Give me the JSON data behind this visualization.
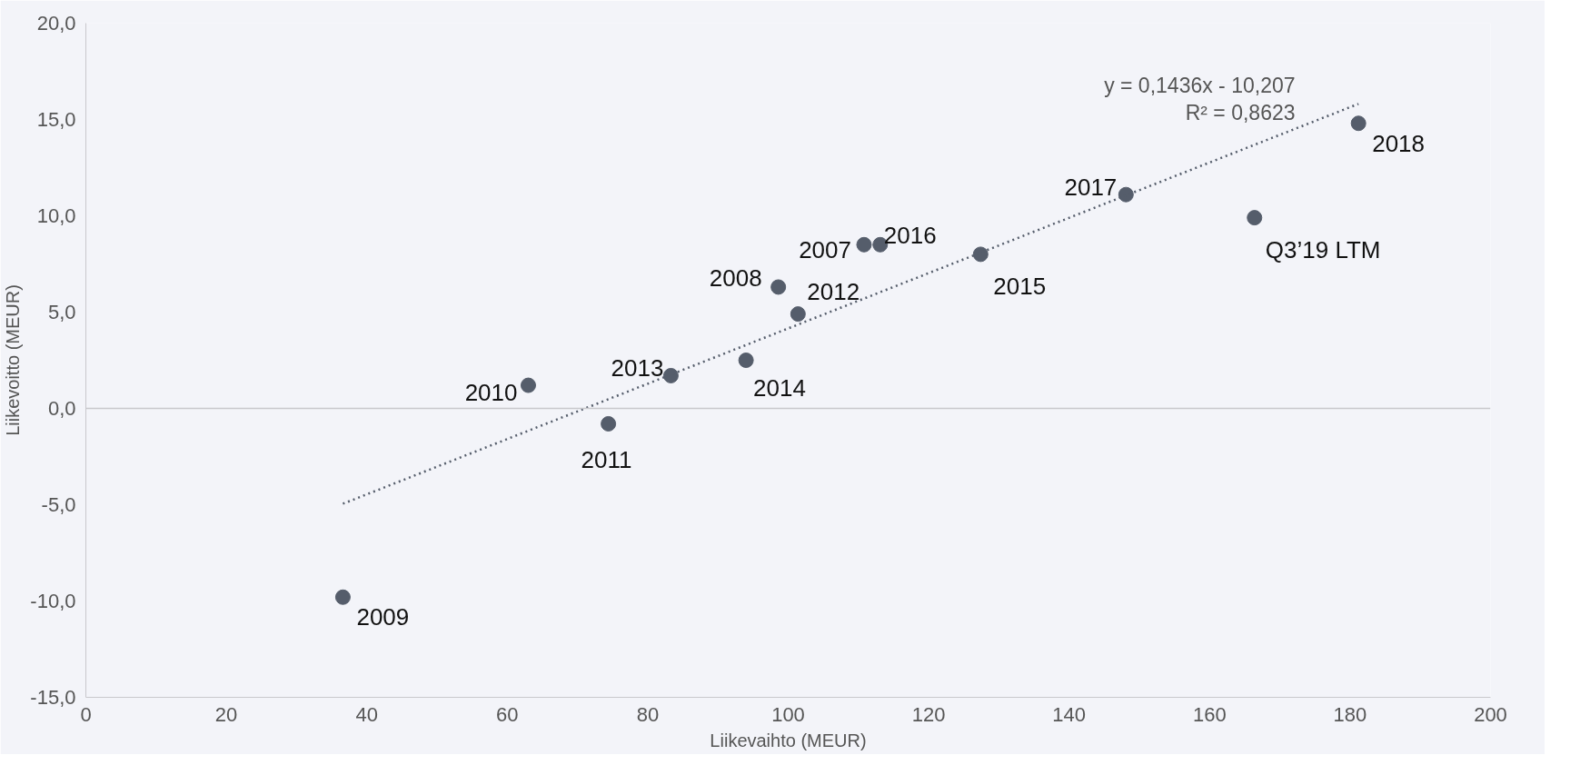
{
  "chart_data": {
    "type": "scatter",
    "xlabel": "Liikevaihto (MEUR)",
    "ylabel": "Liikevoitto (MEUR)",
    "xlim": [
      0,
      200
    ],
    "ylim": [
      -15,
      20
    ],
    "xticks": [
      0,
      20,
      40,
      60,
      80,
      100,
      120,
      140,
      160,
      180,
      200
    ],
    "yticks": [
      {
        "value": -15,
        "label": "-15,0"
      },
      {
        "value": -10,
        "label": "-10,0"
      },
      {
        "value": -5,
        "label": "-5,0"
      },
      {
        "value": 0,
        "label": "0,0"
      },
      {
        "value": 5,
        "label": "5,0"
      },
      {
        "value": 10,
        "label": "10,0"
      },
      {
        "value": 15,
        "label": "15,0"
      },
      {
        "value": 20,
        "label": "20,0"
      }
    ],
    "grid": false,
    "marker": "circle",
    "ref_lines": [
      {
        "axis": "y",
        "value": 0,
        "color": "#c8c8cc"
      }
    ],
    "series": [
      {
        "color": "#555d6b",
        "x": [
          36.6,
          63.0,
          74.4,
          83.3,
          94.0,
          98.6,
          101.4,
          110.8,
          113.1,
          127.4,
          148.1,
          166.4,
          181.2
        ],
        "values": [
          -9.8,
          1.2,
          -0.8,
          1.7,
          2.5,
          6.3,
          4.9,
          8.5,
          8.5,
          8.0,
          11.1,
          9.9,
          14.8
        ]
      },
      {
        "type": "line",
        "color": "#555d6b",
        "line_style": "dotted",
        "marker": "none",
        "x": [
          36.6,
          181.2
        ],
        "values": [
          -4.95,
          15.81
        ]
      }
    ],
    "annotations": [
      {
        "text": "2009",
        "x": 36.6,
        "y": -9.8
      },
      {
        "text": "2010",
        "x": 63.0,
        "y": 1.2
      },
      {
        "text": "2011",
        "x": 74.4,
        "y": -0.8
      },
      {
        "text": "2013",
        "x": 83.3,
        "y": 1.7
      },
      {
        "text": "2014",
        "x": 94.0,
        "y": 2.5
      },
      {
        "text": "2008",
        "x": 98.6,
        "y": 6.3
      },
      {
        "text": "2012",
        "x": 101.4,
        "y": 4.9
      },
      {
        "text": "2007",
        "x": 110.8,
        "y": 8.5
      },
      {
        "text": "2016",
        "x": 113.1,
        "y": 8.5
      },
      {
        "text": "2015",
        "x": 127.4,
        "y": 8.0
      },
      {
        "text": "2017",
        "x": 148.1,
        "y": 11.1
      },
      {
        "text": "Q3’19 LTM",
        "x": 166.4,
        "y": 9.9
      },
      {
        "text": "2018",
        "x": 181.2,
        "y": 14.8
      },
      "y = 0,1436x - 10,207",
      "R² = 0,8623"
    ]
  }
}
